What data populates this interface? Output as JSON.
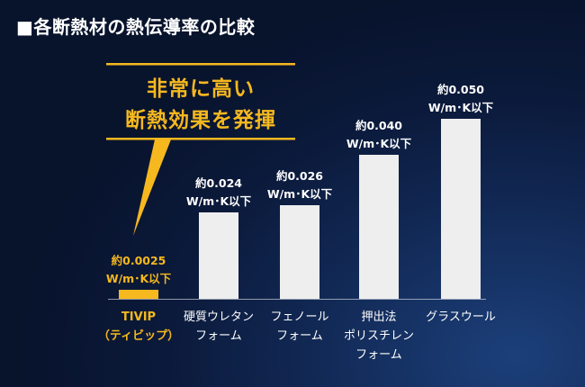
{
  "title": "■各断熱材の熱伝導率の比較",
  "callout": {
    "line1": "非常に高い",
    "line2": "断熱効果を発揮"
  },
  "colors": {
    "accent": "#f6b81f",
    "bar": "#eeeeee",
    "text": "#ffffff",
    "background": "#0b1a3b"
  },
  "chart_data": {
    "type": "bar",
    "categories": [
      [
        "TIVIP",
        "（ティビップ）"
      ],
      [
        "硬質ウレタン",
        "フォーム"
      ],
      [
        "フェノール",
        "フォーム"
      ],
      [
        "押出法",
        "ポリスチレン",
        "フォーム"
      ],
      [
        "グラスウール"
      ]
    ],
    "values": [
      0.0025,
      0.024,
      0.026,
      0.04,
      0.05
    ],
    "data_labels": [
      [
        "約0.0025",
        "W/m･K以下"
      ],
      [
        "約0.024",
        "W/m･K以下"
      ],
      [
        "約0.026",
        "W/m･K以下"
      ],
      [
        "約0.040",
        "W/m･K以下"
      ],
      [
        "約0.050",
        "W/m･K以下"
      ]
    ],
    "highlight_index": 0,
    "grid": false,
    "legend": "none"
  }
}
